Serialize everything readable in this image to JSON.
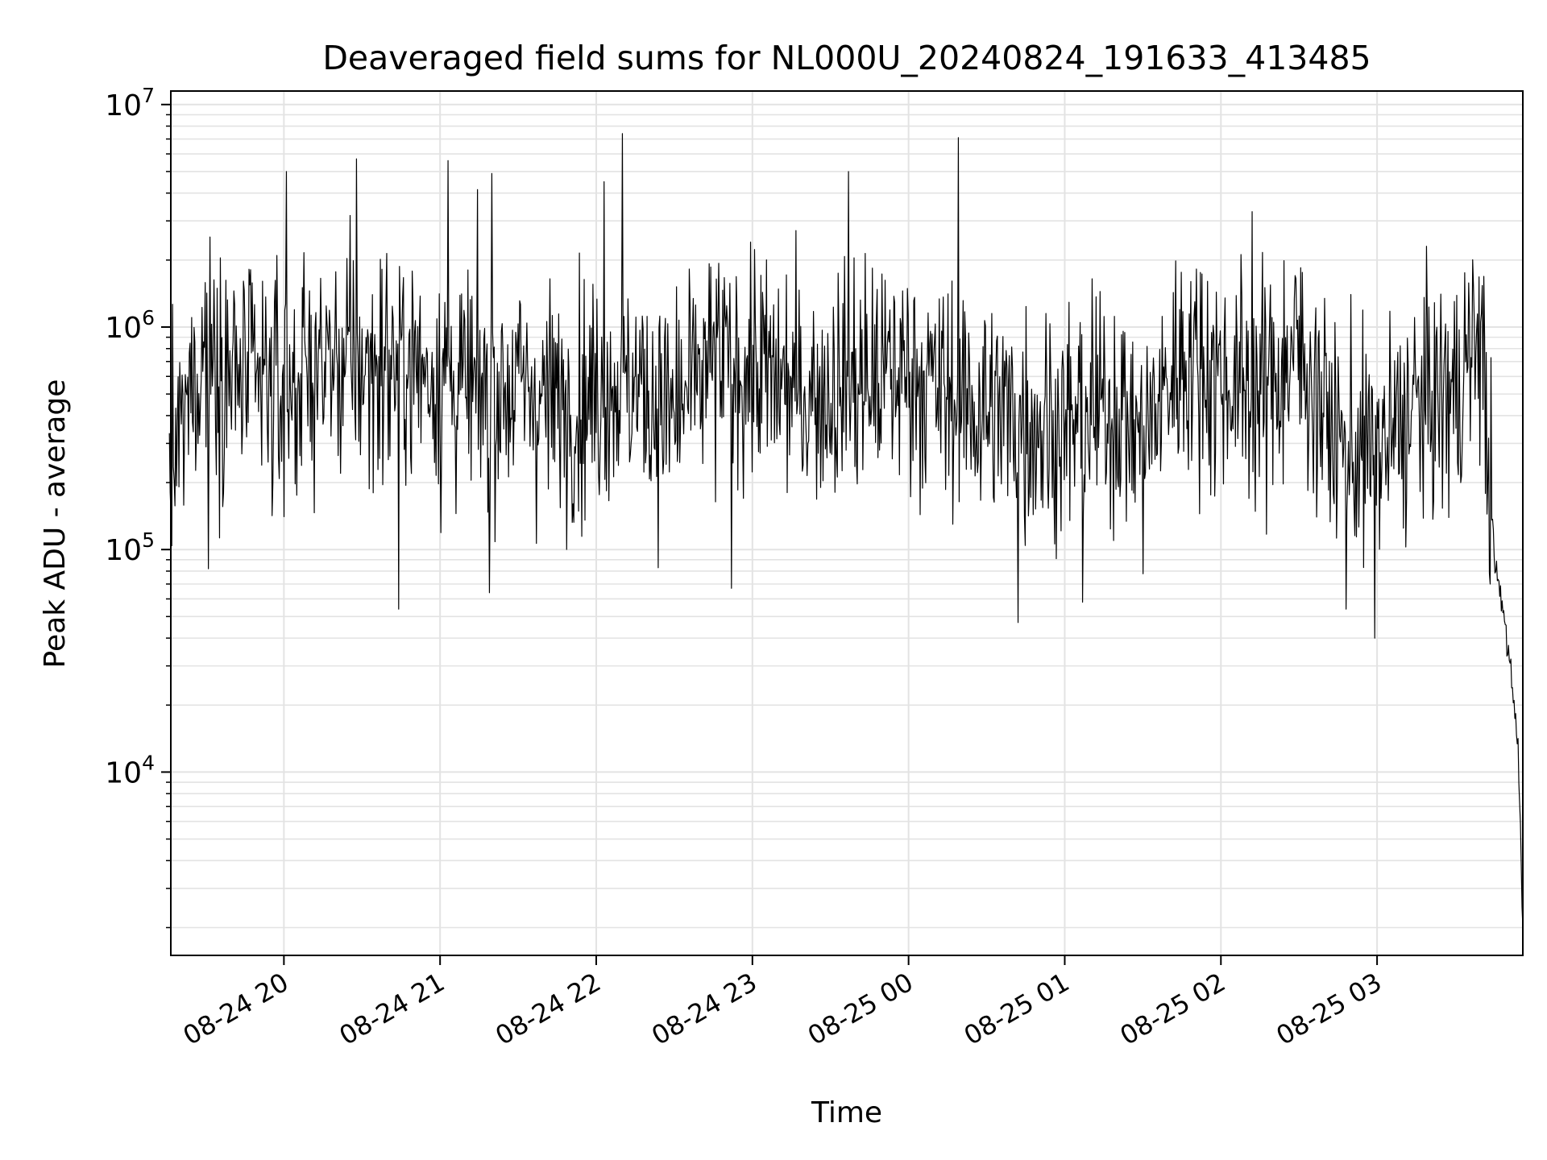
{
  "chart_data": {
    "type": "line",
    "title": "Deaveraged field sums for NL000U_20240824_191633_413485",
    "xlabel": "Time",
    "ylabel": "Peak ADU - average",
    "yscale": "log",
    "ylim": [
      1500,
      11500000
    ],
    "xlim": [
      "2024-08-24 19:16:33",
      "2024-08-25 03:56:00"
    ],
    "grid": true,
    "line_color": "#000000",
    "grid_color": "#e3e3e3",
    "x_ticks": [
      {
        "value": "2024-08-24 20:00",
        "label": "08-24 20"
      },
      {
        "value": "2024-08-24 21:00",
        "label": "08-24 21"
      },
      {
        "value": "2024-08-24 22:00",
        "label": "08-24 22"
      },
      {
        "value": "2024-08-24 23:00",
        "label": "08-24 23"
      },
      {
        "value": "2024-08-25 00:00",
        "label": "08-25 00"
      },
      {
        "value": "2024-08-25 01:00",
        "label": "08-25 01"
      },
      {
        "value": "2024-08-25 02:00",
        "label": "08-25 02"
      },
      {
        "value": "2024-08-25 03:00",
        "label": "08-25 03"
      }
    ],
    "y_ticks": [
      {
        "value": 10000,
        "base": "10",
        "exp": "4"
      },
      {
        "value": 100000,
        "base": "10",
        "exp": "5"
      },
      {
        "value": 1000000,
        "base": "10",
        "exp": "6"
      },
      {
        "value": 10000000,
        "base": "10",
        "exp": "7"
      }
    ],
    "series": [
      {
        "name": "",
        "x": [
          "2024-08-24 19:16",
          "2024-08-24 19:30",
          "2024-08-24 19:40",
          "2024-08-24 20:00",
          "2024-08-24 20:15",
          "2024-08-24 20:30",
          "2024-08-24 20:45",
          "2024-08-24 21:00",
          "2024-08-24 21:15",
          "2024-08-24 21:30",
          "2024-08-24 21:45",
          "2024-08-24 22:00",
          "2024-08-24 22:10",
          "2024-08-24 22:30",
          "2024-08-24 22:45",
          "2024-08-24 23:00",
          "2024-08-24 23:20",
          "2024-08-24 23:40",
          "2024-08-25 00:00",
          "2024-08-25 00:20",
          "2024-08-25 00:40",
          "2024-08-25 01:00",
          "2024-08-25 01:20",
          "2024-08-25 01:30",
          "2024-08-25 01:45",
          "2024-08-25 02:00",
          "2024-08-25 02:15",
          "2024-08-25 02:30",
          "2024-08-25 02:45",
          "2024-08-25 03:00",
          "2024-08-25 03:15",
          "2024-08-25 03:30",
          "2024-08-25 03:40",
          "2024-08-25 03:45",
          "2024-08-25 03:50",
          "2024-08-25 03:54",
          "2024-08-25 03:56"
        ],
        "y": [
          200000,
          900000,
          600000,
          500000,
          700000,
          650000,
          700000,
          600000,
          500000,
          550000,
          450000,
          500000,
          600000,
          400000,
          700000,
          650000,
          500000,
          550000,
          650000,
          450000,
          400000,
          350000,
          450000,
          300000,
          750000,
          600000,
          500000,
          800000,
          300000,
          250000,
          450000,
          500000,
          1000000,
          90000,
          40000,
          15000,
          2000
        ]
      }
    ],
    "spikes_high": [
      {
        "x": "2024-08-24 20:01",
        "y": 5000000
      },
      {
        "x": "2024-08-24 20:28",
        "y": 5700000
      },
      {
        "x": "2024-08-24 21:03",
        "y": 5600000
      },
      {
        "x": "2024-08-24 21:20",
        "y": 4900000
      },
      {
        "x": "2024-08-24 22:03",
        "y": 4500000
      },
      {
        "x": "2024-08-24 22:10",
        "y": 7400000
      },
      {
        "x": "2024-08-24 23:37",
        "y": 5000000
      },
      {
        "x": "2024-08-25 00:19",
        "y": 7100000
      },
      {
        "x": "2024-08-25 02:12",
        "y": 3300000
      }
    ],
    "spikes_low": [
      {
        "x": "2024-08-24 19:31",
        "y": 82000
      },
      {
        "x": "2024-08-24 20:44",
        "y": 54000
      },
      {
        "x": "2024-08-24 21:19",
        "y": 64000
      },
      {
        "x": "2024-08-24 22:52",
        "y": 67000
      },
      {
        "x": "2024-08-25 00:42",
        "y": 47000
      },
      {
        "x": "2024-08-25 01:07",
        "y": 58000
      },
      {
        "x": "2024-08-25 02:48",
        "y": 54000
      },
      {
        "x": "2024-08-25 02:59",
        "y": 40000
      }
    ]
  }
}
